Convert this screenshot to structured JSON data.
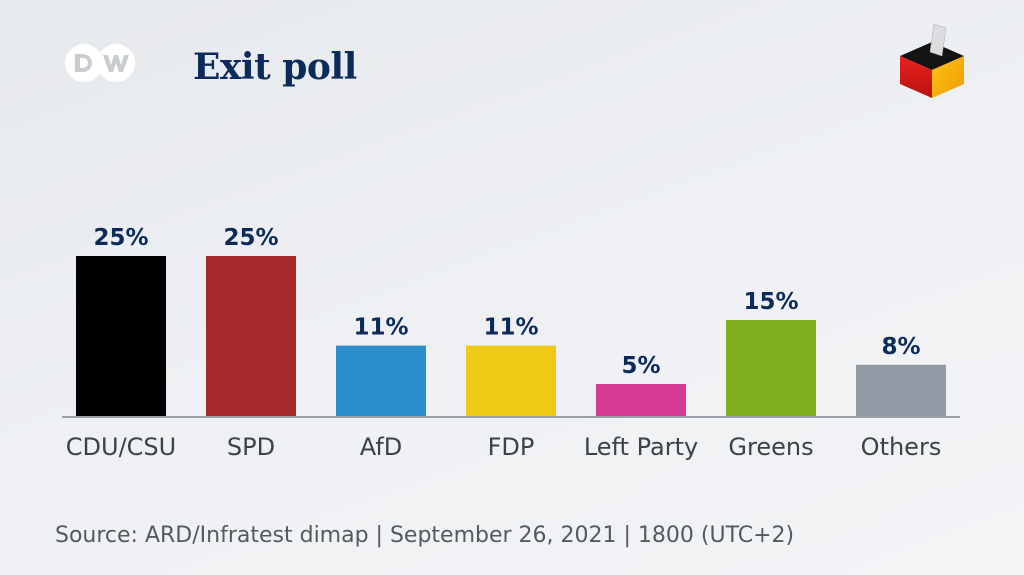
{
  "header": {
    "logo_text": "DW",
    "title": "Exit poll",
    "icon": "ballot-box-icon"
  },
  "chart_data": {
    "type": "bar",
    "title": "Exit poll",
    "categories": [
      "CDU/CSU",
      "SPD",
      "AfD",
      "FDP",
      "Left Party",
      "Greens",
      "Others"
    ],
    "values": [
      25,
      25,
      11,
      11,
      5,
      15,
      8
    ],
    "data_labels": [
      "25%",
      "25%",
      "11%",
      "11%",
      "5%",
      "15%",
      "8%"
    ],
    "colors": [
      "#000000",
      "#a5282a",
      "#2c8fcc",
      "#f0c916",
      "#d43a93",
      "#7fae1e",
      "#939aa3"
    ],
    "xlabel": "",
    "ylabel": "",
    "ylim": [
      0,
      25
    ],
    "grid": false
  },
  "footer": {
    "source": "Source: ARD/Infratest dimap | September 26, 2021 | 1800 (UTC+2)"
  }
}
